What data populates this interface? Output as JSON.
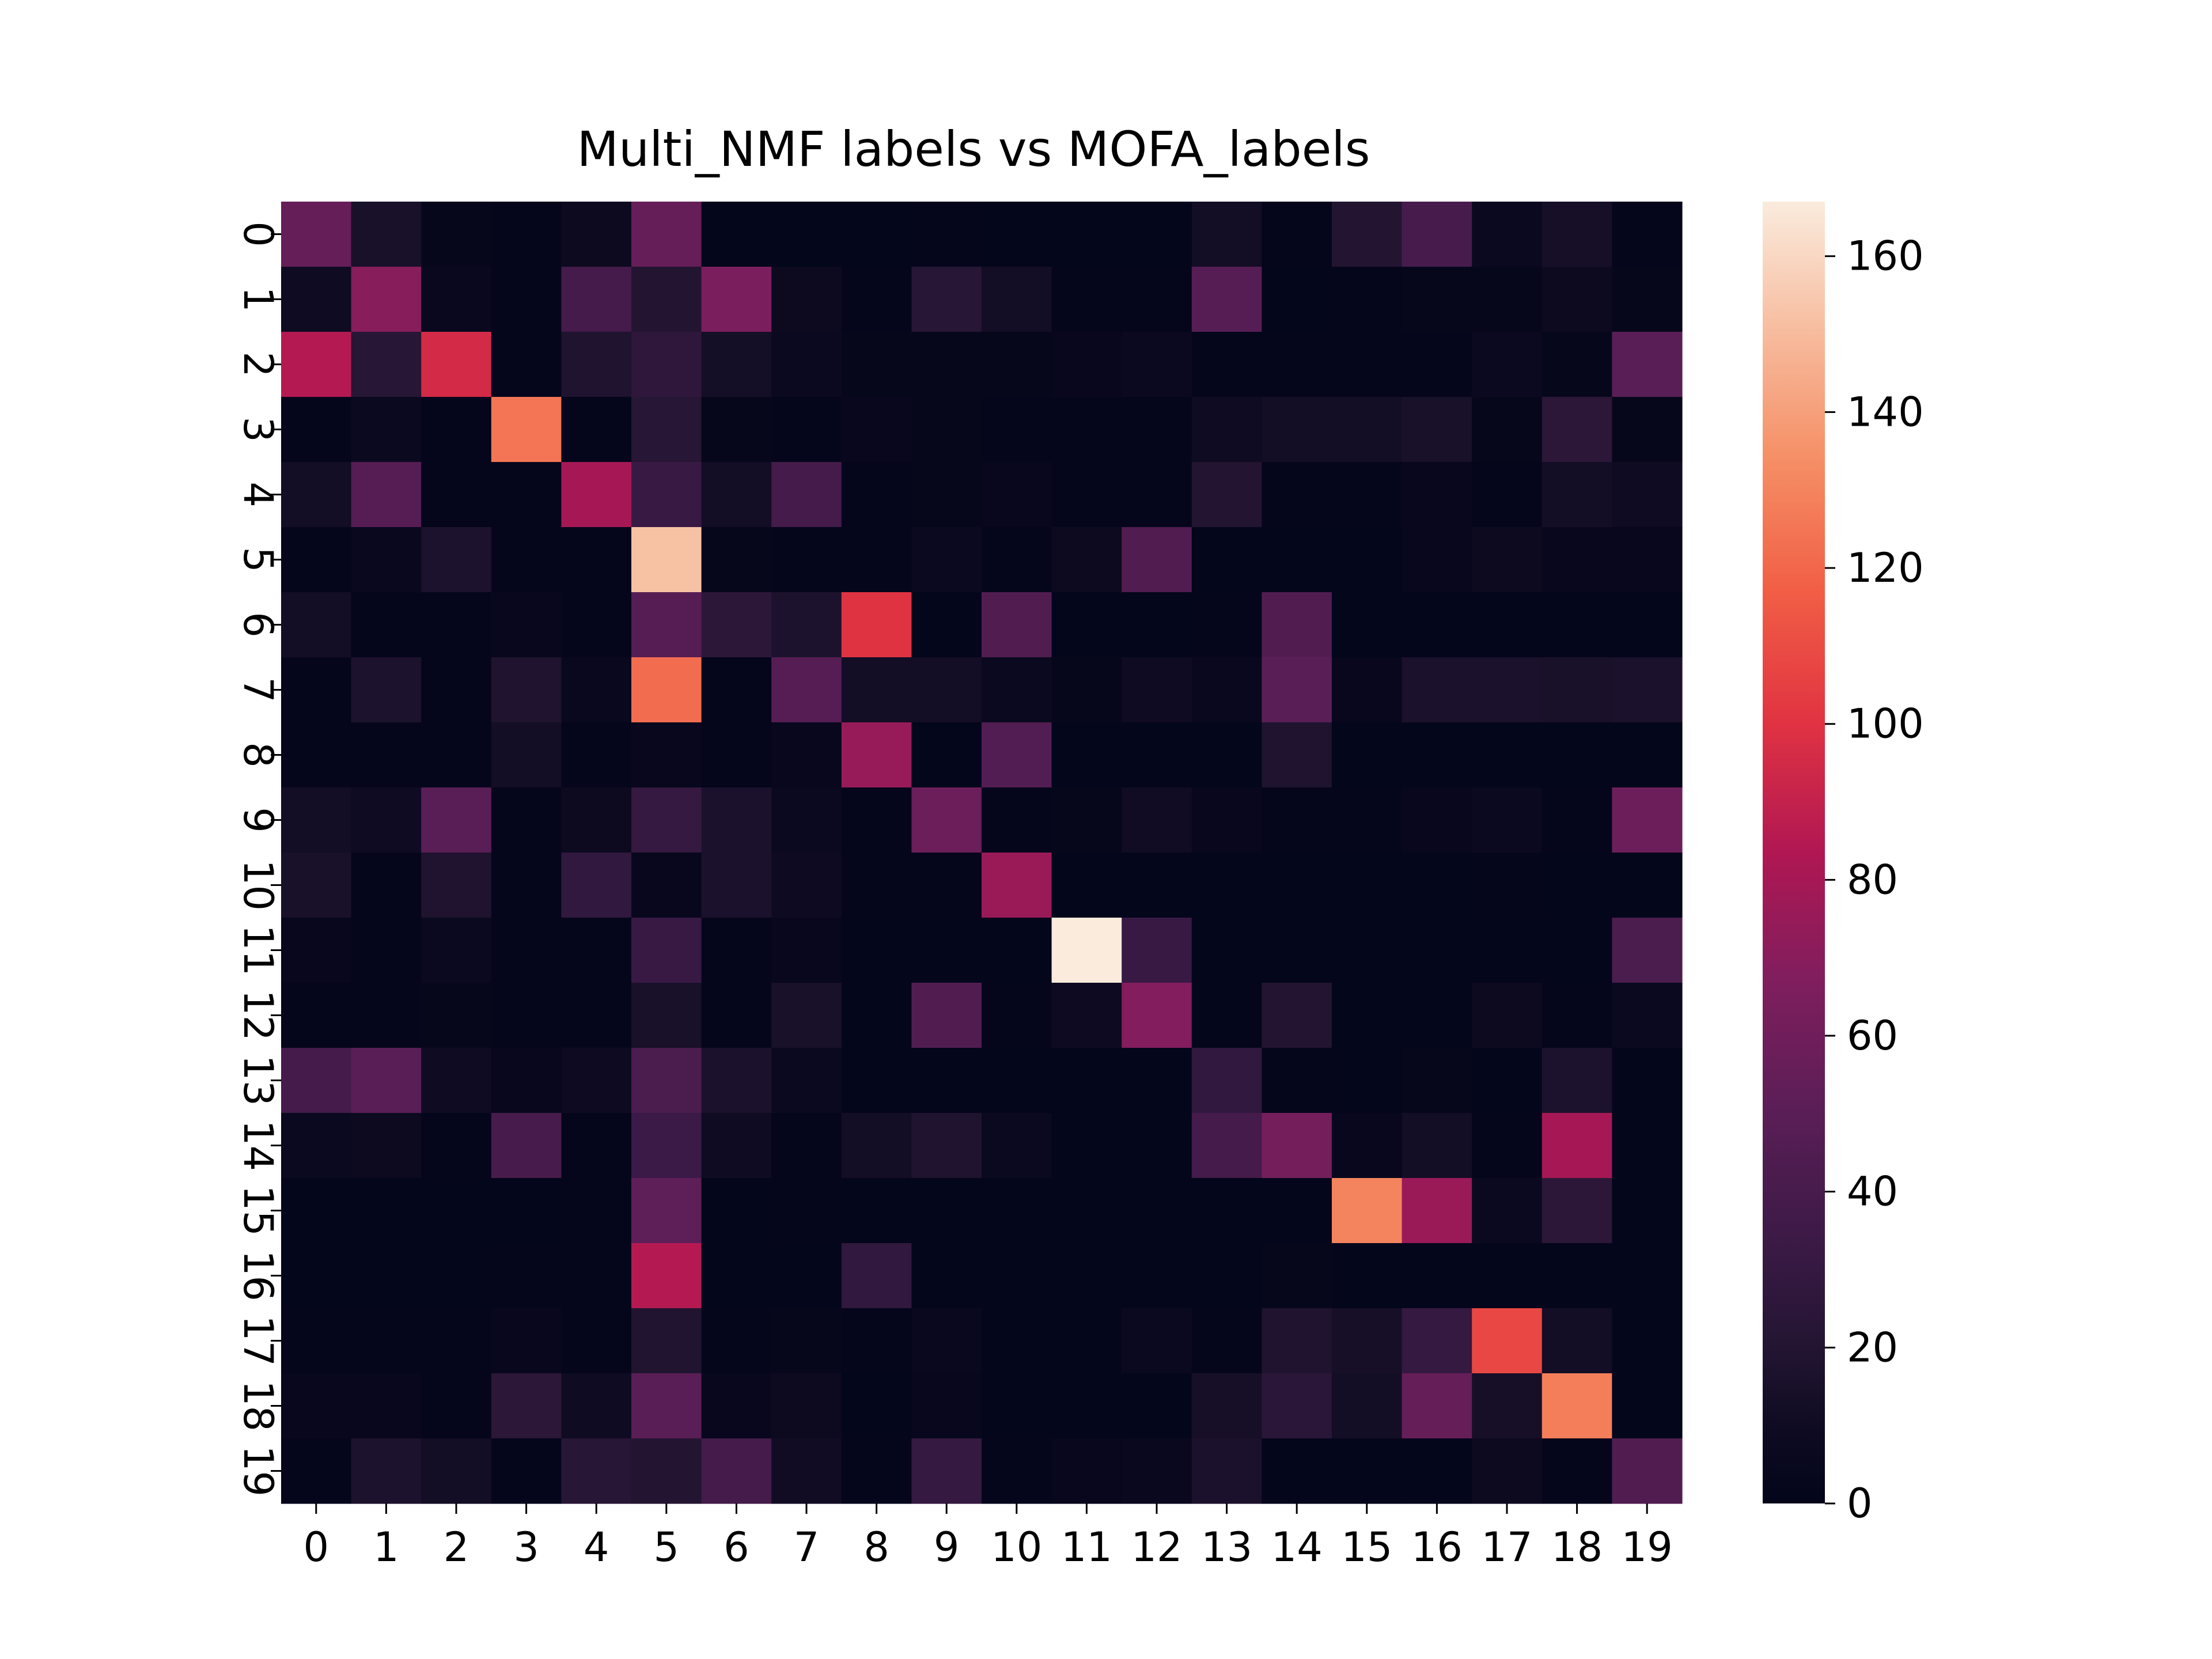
{
  "chart_data": {
    "type": "heatmap",
    "title": "Multi_NMF labels vs MOFA_labels",
    "xlabel": "",
    "ylabel": "",
    "x_categories": [
      "0",
      "1",
      "2",
      "3",
      "4",
      "5",
      "6",
      "7",
      "8",
      "9",
      "10",
      "11",
      "12",
      "13",
      "14",
      "15",
      "16",
      "17",
      "18",
      "19"
    ],
    "y_categories": [
      "0",
      "1",
      "2",
      "3",
      "4",
      "5",
      "6",
      "7",
      "8",
      "9",
      "10",
      "11",
      "12",
      "13",
      "14",
      "15",
      "16",
      "17",
      "18",
      "19"
    ],
    "colormap": "rocket",
    "vmin": 0,
    "vmax": 167,
    "colorbar_ticks": [
      0,
      20,
      40,
      60,
      80,
      100,
      120,
      140,
      160
    ],
    "colorbar_tick_labels": [
      "0",
      "20",
      "40",
      "60",
      "80",
      "100",
      "120",
      "140",
      "160"
    ],
    "values": [
      [
        55,
        15,
        3,
        2,
        8,
        55,
        1,
        1,
        1,
        2,
        1,
        1,
        1,
        12,
        2,
        20,
        40,
        6,
        14,
        2
      ],
      [
        10,
        70,
        5,
        2,
        38,
        20,
        65,
        8,
        2,
        22,
        12,
        2,
        2,
        48,
        1,
        2,
        3,
        3,
        8,
        3
      ],
      [
        85,
        22,
        95,
        2,
        18,
        26,
        13,
        7,
        3,
        3,
        3,
        4,
        7,
        2,
        2,
        2,
        2,
        6,
        3,
        50
      ],
      [
        2,
        7,
        2,
        125,
        2,
        22,
        3,
        2,
        4,
        3,
        2,
        2,
        2,
        10,
        12,
        12,
        15,
        3,
        25,
        3
      ],
      [
        12,
        48,
        2,
        2,
        80,
        32,
        12,
        38,
        2,
        3,
        4,
        2,
        2,
        20,
        2,
        2,
        4,
        2,
        12,
        10
      ],
      [
        2,
        5,
        17,
        2,
        2,
        152,
        3,
        2,
        2,
        6,
        2,
        8,
        45,
        1,
        1,
        1,
        4,
        8,
        4,
        4
      ],
      [
        12,
        2,
        2,
        4,
        2,
        48,
        25,
        17,
        100,
        1,
        45,
        1,
        1,
        2,
        45,
        1,
        1,
        1,
        1,
        1
      ],
      [
        2,
        17,
        2,
        18,
        5,
        122,
        2,
        48,
        12,
        12,
        6,
        3,
        10,
        5,
        50,
        4,
        16,
        16,
        15,
        16
      ],
      [
        2,
        2,
        2,
        12,
        2,
        4,
        2,
        4,
        75,
        1,
        46,
        1,
        1,
        1,
        18,
        1,
        1,
        1,
        1,
        1
      ],
      [
        12,
        10,
        50,
        2,
        8,
        30,
        16,
        6,
        2,
        58,
        2,
        3,
        11,
        4,
        2,
        2,
        4,
        6,
        2,
        58
      ],
      [
        15,
        2,
        18,
        2,
        28,
        4,
        16,
        9,
        2,
        2,
        76,
        1,
        1,
        1,
        1,
        1,
        1,
        2,
        1,
        1
      ],
      [
        4,
        2,
        6,
        2,
        2,
        32,
        2,
        4,
        1,
        1,
        1,
        167,
        32,
        1,
        1,
        1,
        1,
        1,
        1,
        42
      ],
      [
        2,
        2,
        3,
        2,
        2,
        15,
        2,
        15,
        1,
        45,
        2,
        9,
        68,
        1,
        20,
        1,
        1,
        8,
        2,
        7
      ],
      [
        38,
        50,
        10,
        4,
        9,
        42,
        16,
        7,
        1,
        1,
        1,
        1,
        1,
        28,
        2,
        1,
        3,
        1,
        17,
        1
      ],
      [
        6,
        8,
        2,
        40,
        2,
        34,
        10,
        2,
        12,
        18,
        6,
        1,
        1,
        38,
        62,
        4,
        12,
        2,
        80,
        1
      ],
      [
        1,
        1,
        1,
        1,
        2,
        52,
        1,
        2,
        1,
        1,
        1,
        1,
        1,
        1,
        1,
        130,
        76,
        6,
        25,
        1
      ],
      [
        1,
        1,
        1,
        2,
        2,
        85,
        1,
        1,
        28,
        1,
        1,
        1,
        1,
        1,
        3,
        1,
        1,
        1,
        1,
        1
      ],
      [
        2,
        2,
        2,
        4,
        2,
        19,
        2,
        3,
        2,
        5,
        1,
        1,
        6,
        2,
        18,
        14,
        30,
        108,
        12,
        1
      ],
      [
        4,
        4,
        2,
        25,
        10,
        50,
        4,
        8,
        1,
        4,
        1,
        1,
        1,
        14,
        24,
        12,
        55,
        14,
        128,
        1
      ],
      [
        2,
        17,
        12,
        2,
        22,
        20,
        38,
        11,
        2,
        30,
        2,
        4,
        5,
        16,
        1,
        1,
        1,
        8,
        2,
        45
      ]
    ]
  }
}
